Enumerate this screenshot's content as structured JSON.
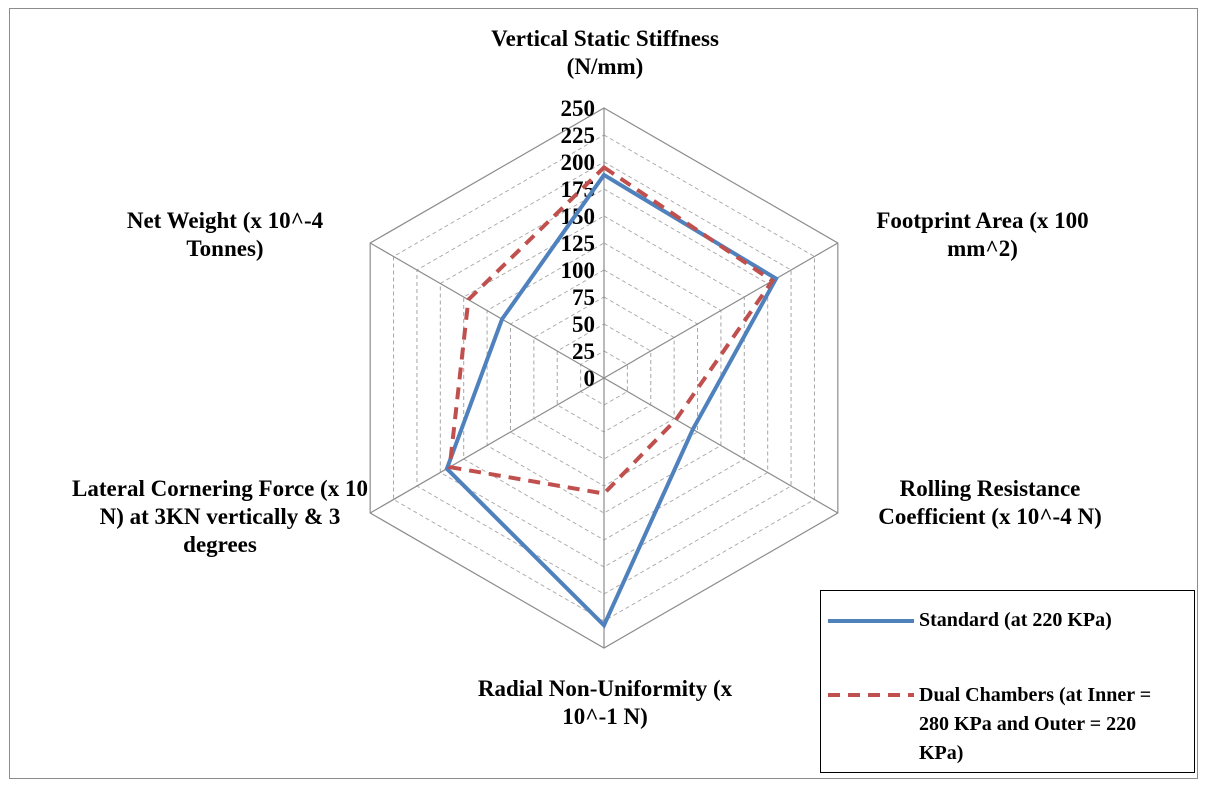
{
  "chart_data": {
    "type": "radar",
    "axes": [
      "Vertical Static Stiffness (N/mm)",
      "Footprint Area (x 100 mm^2)",
      "Rolling Resistance Coefficient (x 10^-4 N)",
      "Radial Non-Uniformity (x 10^-1 N)",
      "Lateral Cornering Force (x 10 N) at 3KN vertically & 3 degrees",
      "Net Weight (x 10^-4 Tonnes)"
    ],
    "ticks": [
      "0",
      "25",
      "50",
      "75",
      "100",
      "125",
      "150",
      "175",
      "200",
      "225",
      "250"
    ],
    "range": [
      0,
      250
    ],
    "series": [
      {
        "name": "Standard (at 220 KPa)",
        "color": "#4f81bd",
        "style": "solid",
        "values": [
          188,
          184,
          95,
          229,
          168,
          109
        ]
      },
      {
        "name": "Dual Chambers (at Inner = 280 KPa and Outer = 220 KPa)",
        "color": "#c0504d",
        "style": "dashed",
        "values": [
          195,
          180,
          77,
          107,
          165,
          145
        ]
      }
    ],
    "legend_position": "bottom-right"
  }
}
